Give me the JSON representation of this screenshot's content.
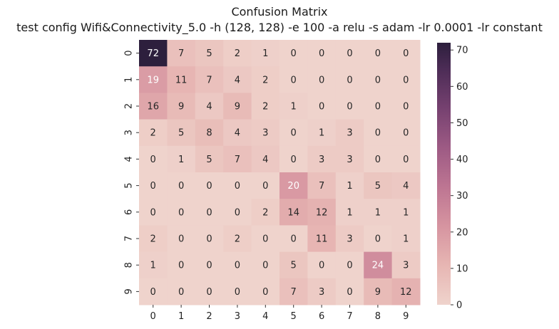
{
  "chart_data": {
    "type": "heatmap",
    "title": "Confusion Matrix",
    "subtitle": "test config Wifi&Connectivity_5.0 -h (128, 128) -e 100 -a relu -s adam -lr 0.0001 -lr constant",
    "xlabel": "",
    "ylabel": "",
    "x_categories": [
      "0",
      "1",
      "2",
      "3",
      "4",
      "5",
      "6",
      "7",
      "8",
      "9"
    ],
    "y_categories": [
      "0",
      "1",
      "2",
      "3",
      "4",
      "5",
      "6",
      "7",
      "8",
      "9"
    ],
    "values": [
      [
        72,
        7,
        5,
        2,
        1,
        0,
        0,
        0,
        0,
        0
      ],
      [
        19,
        11,
        7,
        4,
        2,
        0,
        0,
        0,
        0,
        0
      ],
      [
        16,
        9,
        4,
        9,
        2,
        1,
        0,
        0,
        0,
        0
      ],
      [
        2,
        5,
        8,
        4,
        3,
        0,
        1,
        3,
        0,
        0
      ],
      [
        0,
        1,
        5,
        7,
        4,
        0,
        3,
        3,
        0,
        0
      ],
      [
        0,
        0,
        0,
        0,
        0,
        20,
        7,
        1,
        5,
        4
      ],
      [
        0,
        0,
        0,
        0,
        2,
        14,
        12,
        1,
        1,
        1
      ],
      [
        2,
        0,
        0,
        2,
        0,
        0,
        11,
        3,
        0,
        1
      ],
      [
        1,
        0,
        0,
        0,
        0,
        5,
        0,
        0,
        24,
        3
      ],
      [
        0,
        0,
        0,
        0,
        0,
        7,
        3,
        0,
        9,
        12
      ]
    ],
    "colorbar": {
      "range": [
        0,
        72
      ],
      "ticks": [
        0,
        10,
        20,
        30,
        40,
        50,
        60,
        70
      ],
      "low_color": "#efd3cc",
      "high_color": "#2d1f3d"
    },
    "grid": false
  }
}
